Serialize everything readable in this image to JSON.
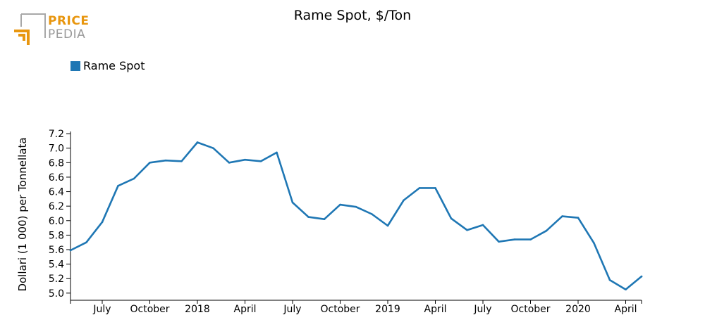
{
  "logo": {
    "word1": "PRICE",
    "word2": "PEDIA"
  },
  "colors": {
    "series": "#1f77b4",
    "logo_orange": "#e8960f",
    "logo_grey": "#a8a8a8"
  },
  "chart_data": {
    "type": "line",
    "title": "Rame Spot, $/Ton",
    "xlabel": "",
    "ylabel": "Dollari (1 000) per Tonnellata",
    "legend_position": "top-left",
    "grid": false,
    "ylim": [
      4.95,
      7.23
    ],
    "yticks": [
      5.0,
      5.2,
      5.4,
      5.6,
      5.8,
      6.0,
      6.2,
      6.4,
      6.6,
      6.8,
      7.0,
      7.2
    ],
    "xticks": [
      {
        "label": "July",
        "index": 2
      },
      {
        "label": "October",
        "index": 5
      },
      {
        "label": "2018",
        "index": 8
      },
      {
        "label": "April",
        "index": 11
      },
      {
        "label": "July",
        "index": 14
      },
      {
        "label": "October",
        "index": 17
      },
      {
        "label": "2019",
        "index": 20
      },
      {
        "label": "April",
        "index": 23
      },
      {
        "label": "July",
        "index": 26
      },
      {
        "label": "October",
        "index": 29
      },
      {
        "label": "2020",
        "index": 32
      },
      {
        "label": "April",
        "index": 35
      }
    ],
    "x_span": [
      0,
      36
    ],
    "x": [
      "2017-05",
      "2017-06",
      "2017-07",
      "2017-08",
      "2017-09",
      "2017-10",
      "2017-11",
      "2017-12",
      "2018-01",
      "2018-02",
      "2018-03",
      "2018-04",
      "2018-05",
      "2018-06",
      "2018-07",
      "2018-08",
      "2018-09",
      "2018-10",
      "2018-11",
      "2018-12",
      "2019-01",
      "2019-02",
      "2019-03",
      "2019-04",
      "2019-05",
      "2019-06",
      "2019-07",
      "2019-08",
      "2019-09",
      "2019-10",
      "2019-11",
      "2019-12",
      "2020-01",
      "2020-02",
      "2020-03",
      "2020-04",
      "2020-05"
    ],
    "series": [
      {
        "name": "Rame Spot",
        "values": [
          5.59,
          5.7,
          5.98,
          6.48,
          6.58,
          6.8,
          6.83,
          6.82,
          7.08,
          7.0,
          6.8,
          6.84,
          6.82,
          6.94,
          6.25,
          6.05,
          6.02,
          6.22,
          6.19,
          6.09,
          5.93,
          6.28,
          6.45,
          6.45,
          6.03,
          5.87,
          5.94,
          5.71,
          5.74,
          5.74,
          5.86,
          6.06,
          6.04,
          5.69,
          5.18,
          5.05,
          5.23
        ]
      }
    ]
  }
}
